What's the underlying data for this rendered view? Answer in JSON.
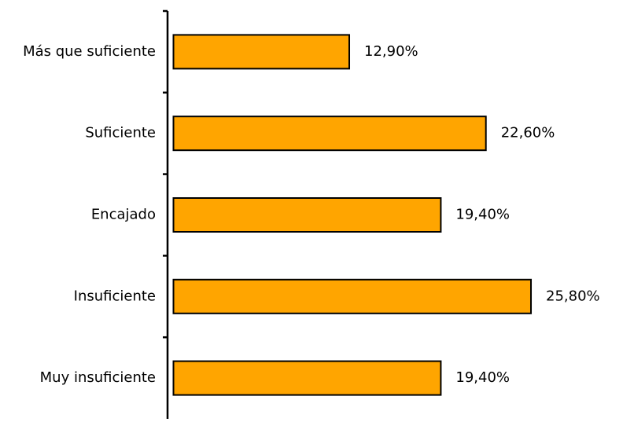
{
  "chart_data": {
    "type": "bar",
    "orientation": "horizontal",
    "categories": [
      "Más que suficiente",
      "Suficiente",
      "Encajado",
      "Insuficiente",
      "Muy insuficiente"
    ],
    "values": [
      12.9,
      22.6,
      19.4,
      25.8,
      19.4
    ],
    "value_labels": [
      "12,90%",
      "22,60%",
      "19,40%",
      "25,80%",
      "19,40%"
    ],
    "xlim": [
      0,
      32.5
    ],
    "grid": false,
    "legend": "none",
    "colors": {
      "bar_fill": "#ffa500",
      "bar_stroke": "#000000",
      "axis": "#000000",
      "text": "#000000",
      "background": "#ffffff"
    }
  }
}
